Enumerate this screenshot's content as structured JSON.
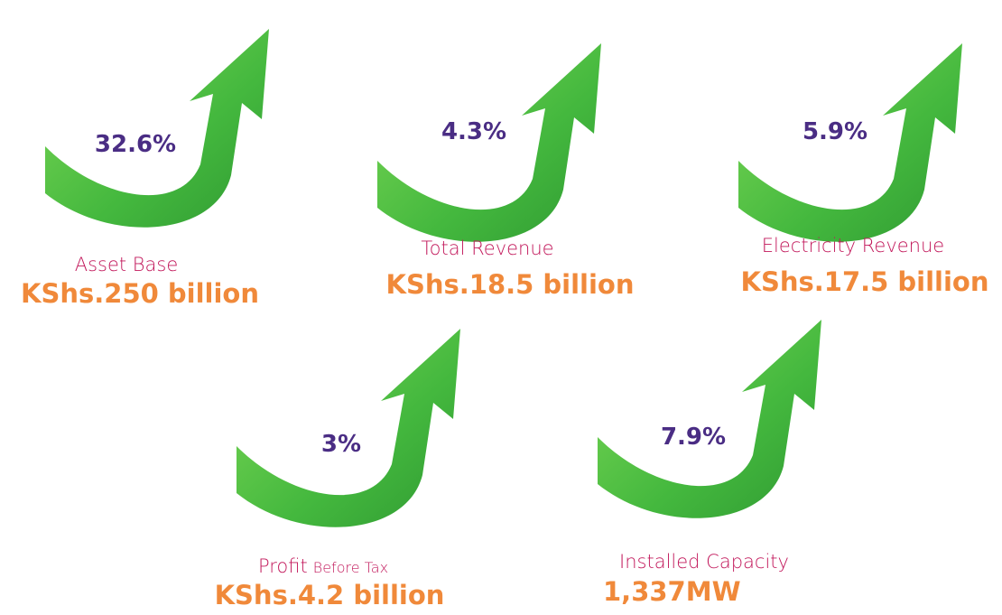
{
  "items": [
    {
      "percent": "32.6%",
      "label": "Asset Base",
      "value": "KShs.250 billion"
    },
    {
      "percent": "4.3%",
      "label": "Total Revenue",
      "value": "KShs.18.5 billion"
    },
    {
      "percent": "5.9%",
      "label": "Electricity Revenue",
      "value": "KShs.17.5 billion"
    },
    {
      "percent": "3%",
      "label": "Profit",
      "label_small": "Before Tax",
      "value": "KShs.4.2 billion"
    },
    {
      "percent": "7.9%",
      "label": "Installed Capacity",
      "value": "1,337MW"
    }
  ]
}
